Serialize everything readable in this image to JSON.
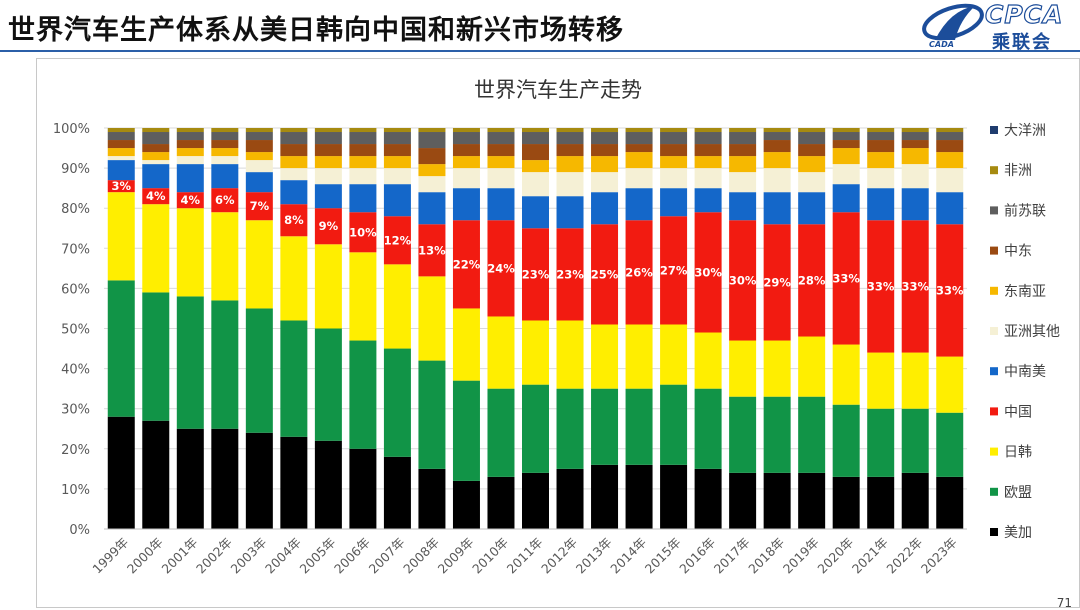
{
  "slide": {
    "title": "世界汽车生产体系从美日韩向中国和新兴市场转移",
    "logo_text": "CPCA",
    "logo_cn": "乘联会",
    "logo_sub": "CADA",
    "page_number": "71"
  },
  "chart_data": {
    "type": "bar",
    "stacked": true,
    "percent_stacked": true,
    "title": "世界汽车生产走势",
    "xlabel": "",
    "ylabel": "",
    "ylim": [
      0,
      100
    ],
    "y_ticks": [
      "0%",
      "10%",
      "20%",
      "30%",
      "40%",
      "50%",
      "60%",
      "70%",
      "80%",
      "90%",
      "100%"
    ],
    "categories": [
      "1999年",
      "2000年",
      "2001年",
      "2002年",
      "2003年",
      "2004年",
      "2005年",
      "2006年",
      "2007年",
      "2008年",
      "2009年",
      "2010年",
      "2011年",
      "2012年",
      "2013年",
      "2014年",
      "2015年",
      "2016年",
      "2017年",
      "2018年",
      "2019年",
      "2020年",
      "2021年",
      "2022年",
      "2023年"
    ],
    "legend_position": "right",
    "series": [
      {
        "name": "美加",
        "color": "#000000",
        "values": [
          28,
          27,
          25,
          25,
          24,
          23,
          22,
          20,
          18,
          15,
          12,
          13,
          14,
          15,
          16,
          16,
          16,
          15,
          14,
          14,
          14,
          13,
          13,
          14,
          13
        ]
      },
      {
        "name": "欧盟",
        "color": "#119447",
        "values": [
          34,
          32,
          33,
          32,
          31,
          29,
          28,
          27,
          27,
          27,
          25,
          22,
          22,
          20,
          19,
          19,
          20,
          20,
          19,
          19,
          19,
          18,
          17,
          16,
          16
        ]
      },
      {
        "name": "日韩",
        "color": "#ffee00",
        "values": [
          22,
          22,
          22,
          22,
          22,
          21,
          21,
          22,
          21,
          21,
          18,
          18,
          16,
          17,
          16,
          16,
          15,
          14,
          14,
          14,
          15,
          15,
          14,
          14,
          14
        ]
      },
      {
        "name": "中国",
        "color": "#f21b11",
        "values": [
          3,
          4,
          4,
          6,
          7,
          8,
          9,
          10,
          12,
          13,
          22,
          24,
          23,
          23,
          25,
          26,
          27,
          30,
          30,
          29,
          28,
          33,
          33,
          33,
          33
        ]
      },
      {
        "name": "中南美",
        "color": "#1467c9",
        "values": [
          5,
          6,
          7,
          6,
          5,
          6,
          6,
          7,
          8,
          8,
          8,
          8,
          8,
          8,
          8,
          8,
          7,
          6,
          7,
          8,
          8,
          7,
          8,
          8,
          8
        ]
      },
      {
        "name": "亚洲其他",
        "color": "#f5f0d5",
        "values": [
          1,
          1,
          2,
          2,
          3,
          3,
          4,
          4,
          4,
          4,
          5,
          5,
          6,
          6,
          5,
          5,
          5,
          5,
          5,
          6,
          5,
          5,
          5,
          6,
          6
        ]
      },
      {
        "name": "东南亚",
        "color": "#f6b800",
        "values": [
          2,
          2,
          2,
          2,
          2,
          3,
          3,
          3,
          3,
          3,
          3,
          3,
          3,
          4,
          4,
          4,
          3,
          3,
          4,
          4,
          4,
          4,
          4,
          4,
          4
        ]
      },
      {
        "name": "中东",
        "color": "#9a4a12",
        "values": [
          2,
          2,
          2,
          2,
          3,
          3,
          3,
          3,
          3,
          4,
          3,
          3,
          4,
          3,
          3,
          2,
          3,
          3,
          3,
          3,
          3,
          2,
          3,
          2,
          3
        ]
      },
      {
        "name": "前苏联",
        "color": "#5e5e5e",
        "values": [
          2,
          3,
          2,
          2,
          2,
          3,
          3,
          3,
          3,
          4,
          3,
          3,
          3,
          3,
          3,
          3,
          3,
          3,
          3,
          2,
          3,
          2,
          2,
          2,
          2
        ]
      },
      {
        "name": "非洲",
        "color": "#a68a10",
        "values": [
          1,
          1,
          1,
          1,
          1,
          1,
          1,
          1,
          1,
          1,
          1,
          1,
          1,
          1,
          1,
          1,
          1,
          1,
          1,
          1,
          1,
          1,
          1,
          1,
          1
        ]
      },
      {
        "name": "大洋洲",
        "color": "#1f3c6e",
        "values": [
          0,
          0,
          0,
          0,
          0,
          0,
          0,
          0,
          0,
          0,
          0,
          0,
          0,
          0,
          0,
          0,
          0,
          0,
          0,
          0,
          0,
          0,
          0,
          0,
          0
        ]
      }
    ],
    "data_labels": {
      "series": "中国",
      "labels": [
        "3%",
        "4%",
        "4%",
        "6%",
        "7%",
        "8%",
        "9%",
        "10%",
        "12%",
        "13%",
        "22%",
        "24%",
        "23%",
        "23%",
        "25%",
        "26%",
        "27%",
        "30%",
        "30%",
        "29%",
        "28%",
        "33%",
        "33%",
        "33%",
        "33%"
      ]
    },
    "legend_order": [
      "大洋洲",
      "非洲",
      "前苏联",
      "中东",
      "东南亚",
      "亚洲其他",
      "中南美",
      "中国",
      "日韩",
      "欧盟",
      "美加"
    ]
  }
}
